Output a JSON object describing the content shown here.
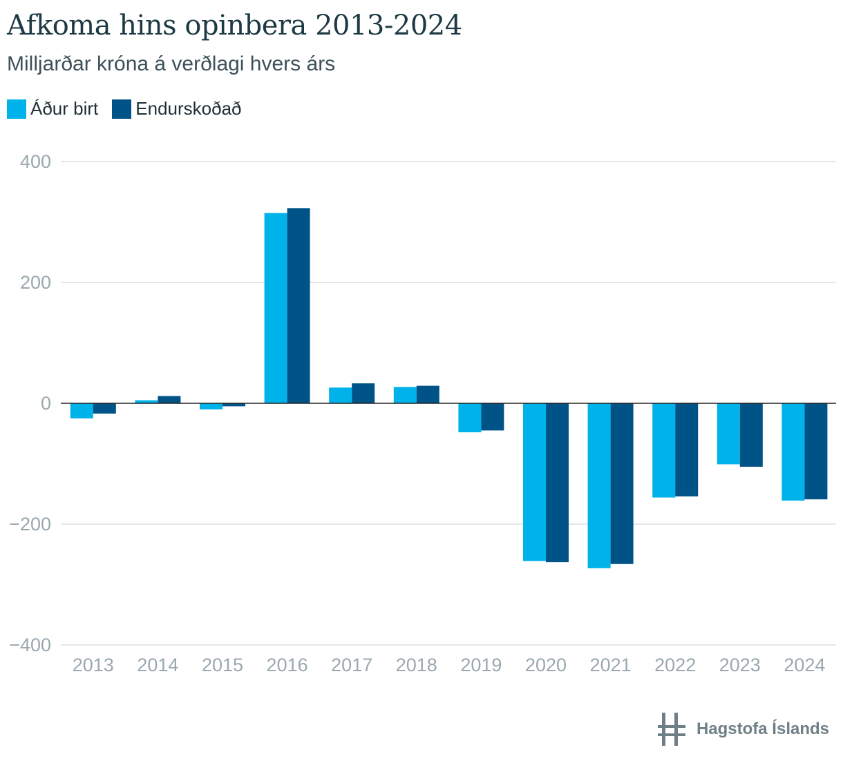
{
  "title": "Afkoma hins opinbera 2013-2024",
  "subtitle": "Milljarðar króna á verðlagi hvers árs",
  "colors": {
    "series1": "#00b2ea",
    "series2": "#005386",
    "grid": "#dcdfe0",
    "axis": "#222222",
    "tick": "#9aa8ae"
  },
  "logo": {
    "text": "Hagstofa Íslands",
    "icon": "hagstofa-logo-icon"
  },
  "chart_data": {
    "type": "bar",
    "title": "Afkoma hins opinbera 2013-2024",
    "subtitle": "Milljarðar króna á verðlagi hvers árs",
    "xlabel": "",
    "ylabel": "",
    "ylim": [
      -400,
      400
    ],
    "yticks": [
      400,
      200,
      0,
      -200,
      -400
    ],
    "ytick_labels": [
      "400",
      "200",
      "0",
      "−200",
      "−400"
    ],
    "legend_position": "top-left",
    "categories": [
      "2013",
      "2014",
      "2015",
      "2016",
      "2017",
      "2018",
      "2019",
      "2020",
      "2021",
      "2022",
      "2023",
      "2024"
    ],
    "series": [
      {
        "name": "Áður birt",
        "values": [
          -25,
          5,
          -10,
          315,
          26,
          27,
          -48,
          -261,
          -273,
          -156,
          -101,
          -161
        ]
      },
      {
        "name": "Endurskoðað",
        "values": [
          -17,
          12,
          -5,
          323,
          33,
          29,
          -45,
          -263,
          -266,
          -154,
          -105,
          -159
        ]
      }
    ]
  }
}
